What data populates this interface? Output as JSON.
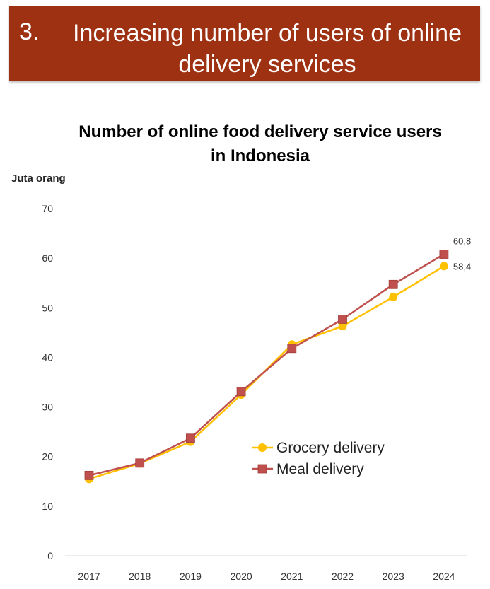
{
  "banner": {
    "number": "3.",
    "title": "Increasing number of users of online delivery services"
  },
  "chart_data": {
    "type": "line",
    "title": "Number of online food delivery service users in Indonesia",
    "ylabel": "Juta orang",
    "xlabel": "",
    "categories": [
      "2017",
      "2018",
      "2019",
      "2020",
      "2021",
      "2022",
      "2023",
      "2024"
    ],
    "ylim": [
      0,
      70
    ],
    "yticks": [
      0,
      10,
      20,
      30,
      40,
      50,
      60,
      70
    ],
    "grid": false,
    "legend": "right-middle",
    "series": [
      {
        "name": "Grocery delivery",
        "marker": "circle",
        "color": "#ffc000",
        "values": [
          15.5,
          18.6,
          23.0,
          32.5,
          42.6,
          46.3,
          52.2,
          58.4
        ],
        "end_label": "58,4"
      },
      {
        "name": "Meal delivery",
        "marker": "square",
        "color": "#c0504d",
        "values": [
          16.2,
          18.7,
          23.7,
          33.1,
          41.8,
          47.7,
          54.7,
          60.8
        ],
        "end_label": "60,8"
      }
    ]
  }
}
